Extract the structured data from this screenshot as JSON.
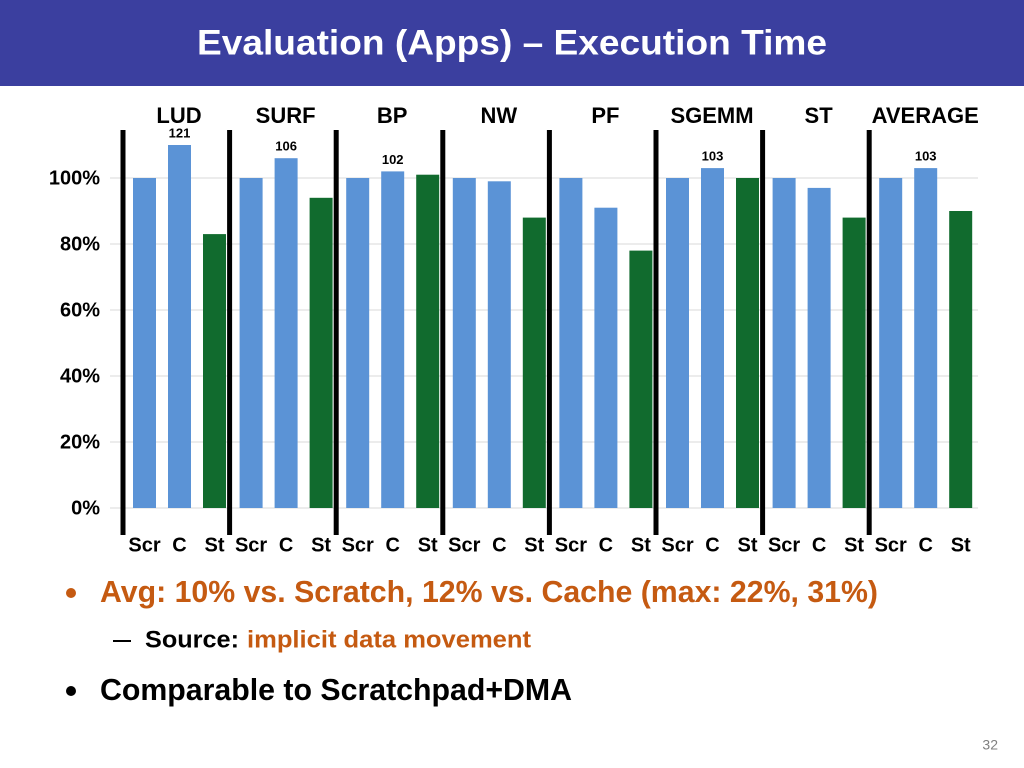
{
  "title": "Evaluation (Apps) – Execution Time",
  "chart_data": {
    "type": "bar",
    "categories": [
      "LUD",
      "SURF",
      "BP",
      "NW",
      "PF",
      "SGEMM",
      "ST",
      "AVERAGE"
    ],
    "series": [
      {
        "name": "Scr",
        "color": "#5b93d6",
        "values": [
          100,
          100,
          100,
          100,
          100,
          100,
          100,
          100
        ]
      },
      {
        "name": "C",
        "color": "#5b93d6",
        "values": [
          121,
          106,
          102,
          99,
          91,
          103,
          97,
          103
        ],
        "value_labels": [
          "121",
          "106",
          "102",
          null,
          null,
          "103",
          null,
          "103"
        ]
      },
      {
        "name": "St",
        "color": "#116b2e",
        "values": [
          83,
          94,
          101,
          88,
          78,
          100,
          88,
          90
        ]
      }
    ],
    "ylim": [
      0,
      110
    ],
    "yticks": [
      {
        "value": 0,
        "label": "0%"
      },
      {
        "value": 20,
        "label": "20%"
      },
      {
        "value": 40,
        "label": "40%"
      },
      {
        "value": 60,
        "label": "60%"
      },
      {
        "value": 80,
        "label": "80%"
      },
      {
        "value": 100,
        "label": "100%"
      }
    ],
    "grid": true
  },
  "bullets": [
    {
      "text": "Avg: 10% vs. Scratch, 12% vs. Cache (max: 22%, 31%)",
      "sub": [
        {
          "label": "Source:",
          "text": "implicit data movement"
        }
      ]
    },
    {
      "text": "Comparable to Scratchpad+DMA"
    }
  ],
  "page_number": "32"
}
